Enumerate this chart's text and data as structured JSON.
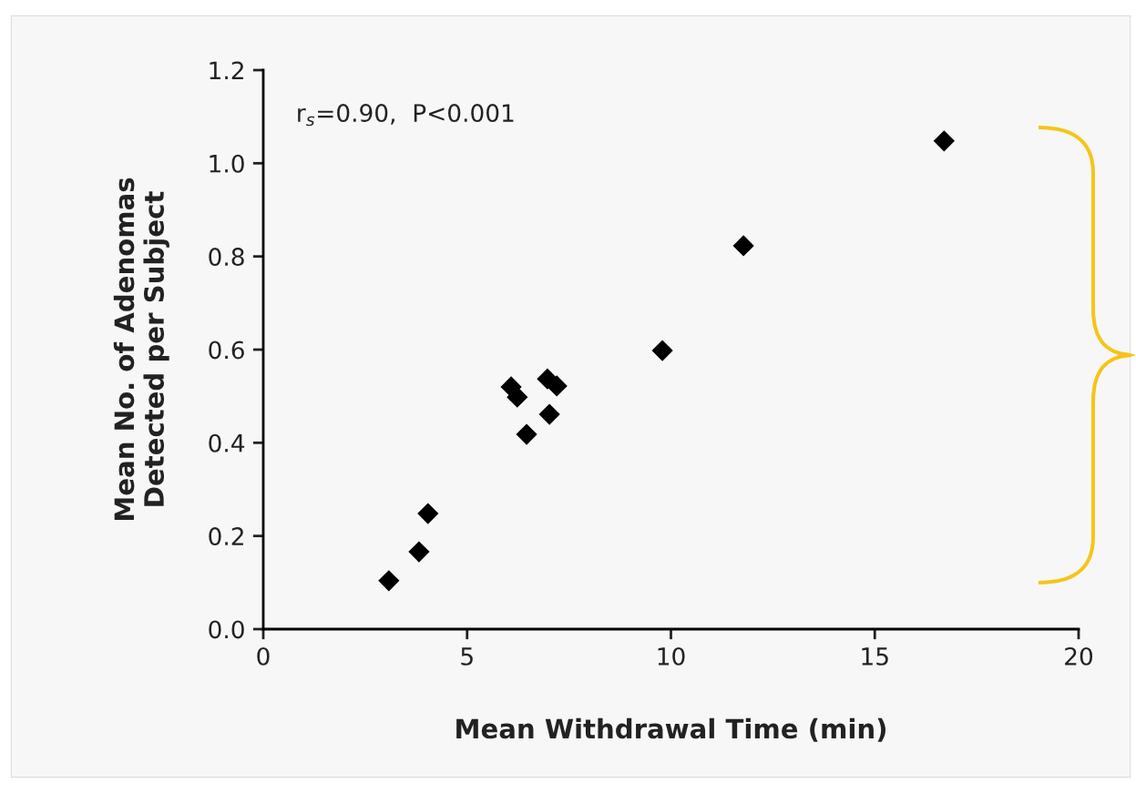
{
  "chart_data": {
    "type": "scatter",
    "xlabel": "Mean Withdrawal Time (min)",
    "ylabel": "Mean No. of Adenomas\nDetected per Subject",
    "x": [
      3.08,
      3.82,
      4.04,
      6.08,
      6.23,
      6.46,
      6.97,
      7.02,
      7.2,
      9.79,
      11.78,
      16.7
    ],
    "series": [
      {
        "color": "#000000",
        "values": [
          0.104,
          0.166,
          0.248,
          0.52,
          0.498,
          0.418,
          0.537,
          0.461,
          0.522,
          0.598,
          0.823,
          1.048
        ]
      }
    ],
    "xlim": [
      0,
      20
    ],
    "xticks": [
      0,
      5,
      10,
      15,
      20
    ],
    "ylim": [
      0,
      1.2
    ],
    "yticks": [
      {
        "value": 0,
        "label": "0.0"
      },
      {
        "value": 0.2,
        "label": "0.2"
      },
      {
        "value": 0.4,
        "label": "0.4"
      },
      {
        "value": 0.6,
        "label": "0.6"
      },
      {
        "value": 0.8,
        "label": "0.8"
      },
      {
        "value": 1.0,
        "label": "1.0"
      },
      {
        "value": 1.2,
        "label": "1.2"
      }
    ],
    "annotations": [
      "r$_{s}$=0.90,  P<0.001"
    ],
    "marker": "diamond",
    "grid": false,
    "legend": false
  }
}
